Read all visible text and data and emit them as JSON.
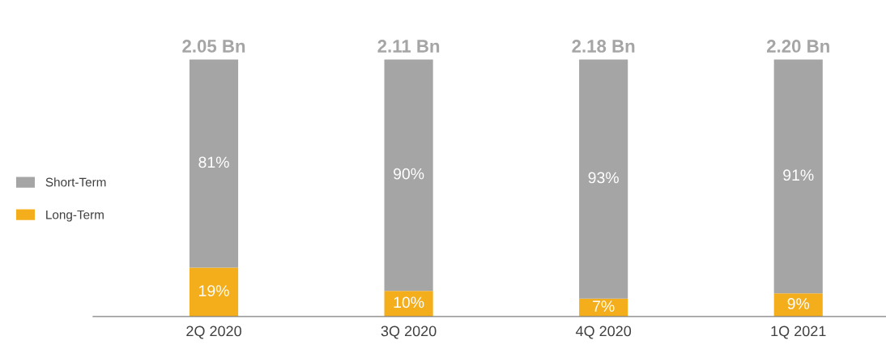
{
  "chart_data": {
    "type": "bar",
    "stacked": true,
    "categories": [
      "2Q 2020",
      "3Q 2020",
      "4Q 2020",
      "1Q 2021"
    ],
    "series": [
      {
        "name": "Long-Term",
        "color": "#f5ae1b",
        "values": [
          19,
          10,
          7,
          9
        ],
        "value_labels": [
          "19%",
          "10%",
          "7%",
          "9%"
        ]
      },
      {
        "name": "Short-Term",
        "color": "#a5a5a5",
        "values": [
          81,
          90,
          93,
          91
        ],
        "value_labels": [
          "81%",
          "90%",
          "93%",
          "91%"
        ]
      }
    ],
    "annotations": [
      {
        "text": "2.05 Bn",
        "x": "2Q 2020",
        "y": 100
      },
      {
        "text": "2.11 Bn",
        "x": "3Q 2020",
        "y": 100
      },
      {
        "text": "2.18 Bn",
        "x": "4Q 2020",
        "y": 100
      },
      {
        "text": "2.20 Bn",
        "x": "1Q 2021",
        "y": 100
      }
    ],
    "legend": "left",
    "grid": false
  }
}
